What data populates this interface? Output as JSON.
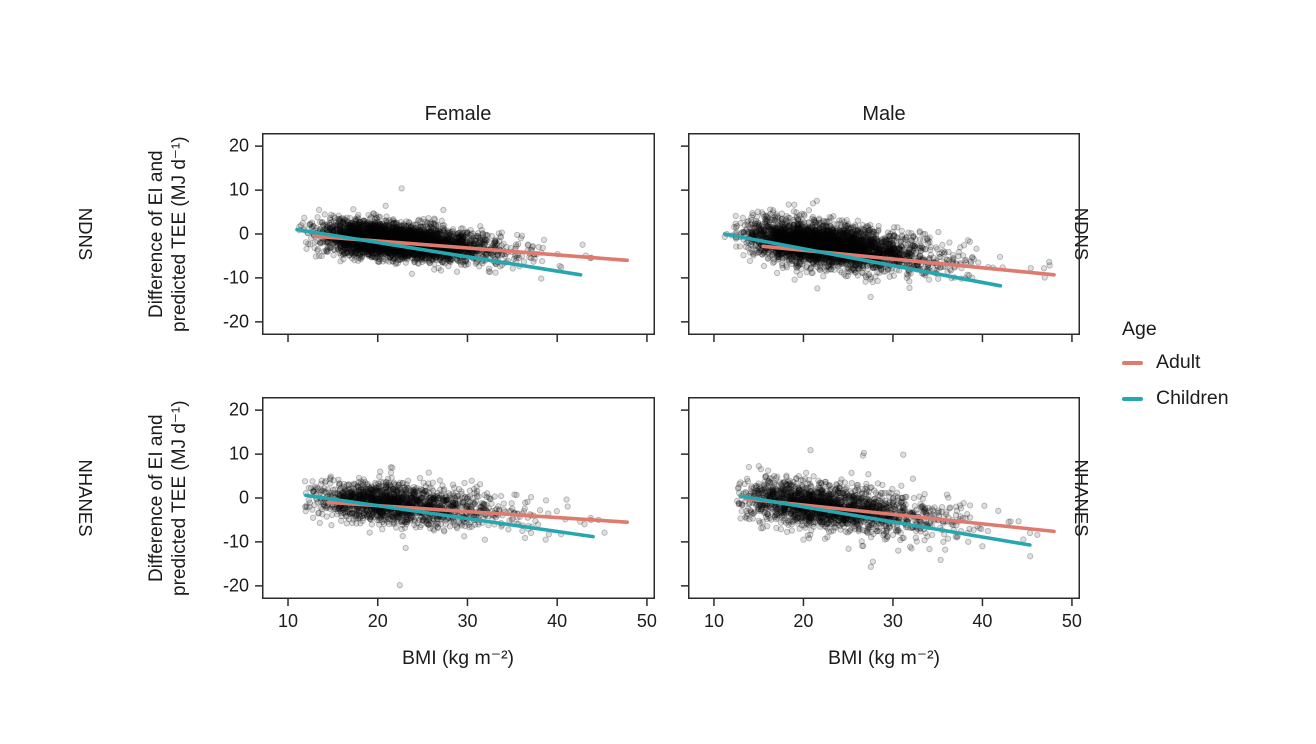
{
  "figure": {
    "column_titles": [
      "Female",
      "Male"
    ],
    "row_labels": [
      "NDNS",
      "NHANES"
    ],
    "y_axis_label_line1": "Difference of EI and",
    "y_axis_label_line2": "predicted TEE (MJ d⁻¹)",
    "x_axis_label": "BMI (kg m⁻²)"
  },
  "legend": {
    "title": "Age",
    "items": [
      {
        "label": "Adult",
        "color": "#DF7A6E"
      },
      {
        "label": "Children",
        "color": "#26A7AF"
      }
    ]
  },
  "chart_data": {
    "type": "scatter",
    "title": "",
    "facet_rows": [
      "NDNS",
      "NHANES"
    ],
    "facet_cols": [
      "Female",
      "Male"
    ],
    "xlabel": "BMI (kg m⁻²)",
    "ylabel": "Difference of EI and predicted TEE (MJ d⁻¹)",
    "xlim": [
      7.1,
      50.9
    ],
    "ylim": [
      -23,
      23
    ],
    "x_ticks": [
      10,
      20,
      30,
      40,
      50
    ],
    "y_ticks": [
      20,
      10,
      0,
      -10,
      -20
    ],
    "grid": "off",
    "legend_position": "right",
    "point_style": {
      "shape": "open-circle",
      "radius": 2.7,
      "fill": "rgba(0,0,0,0.13)",
      "stroke": "rgba(0,0,0,0.25)"
    },
    "series_colors": {
      "Adult": "#DF7A6E",
      "Children": "#26A7AF"
    },
    "panels": [
      {
        "row": "NDNS",
        "col": "Female",
        "trend_lines": [
          {
            "name": "Adult",
            "x": [
              13.0,
              47.8
            ],
            "y": [
              -0.5,
              -6.0
            ]
          },
          {
            "name": "Children",
            "x": [
              11.0,
              42.6
            ],
            "y": [
              1.0,
              -9.3
            ]
          }
        ],
        "cloud": {
          "n": 4300,
          "bmi_log_mean": 3.085,
          "bmi_log_sd": 0.205,
          "bmi_min": 11.2,
          "bmi_max": 48.0,
          "y_intercept": 2.6,
          "y_slope": -0.19,
          "y_sd": 1.95,
          "tail_prob": 0.006,
          "tail_mult": 2.6,
          "seed": 11
        }
      },
      {
        "row": "NDNS",
        "col": "Male",
        "trend_lines": [
          {
            "name": "Adult",
            "x": [
              15.5,
              48.0
            ],
            "y": [
              -2.8,
              -9.3
            ]
          },
          {
            "name": "Children",
            "x": [
              11.2,
              42.0
            ],
            "y": [
              0.0,
              -11.8
            ]
          }
        ],
        "cloud": {
          "n": 4000,
          "bmi_log_mean": 3.11,
          "bmi_log_sd": 0.215,
          "bmi_min": 11.2,
          "bmi_max": 48.5,
          "y_intercept": 3.1,
          "y_slope": -0.25,
          "y_sd": 2.25,
          "tail_prob": 0.007,
          "tail_mult": 2.6,
          "seed": 22
        }
      },
      {
        "row": "NHANES",
        "col": "Female",
        "trend_lines": [
          {
            "name": "Adult",
            "x": [
              14.5,
              47.8
            ],
            "y": [
              -1.0,
              -5.5
            ]
          },
          {
            "name": "Children",
            "x": [
              12.0,
              44.0
            ],
            "y": [
              0.6,
              -8.8
            ]
          }
        ],
        "cloud": {
          "n": 1750,
          "bmi_log_mean": 3.1,
          "bmi_log_sd": 0.235,
          "bmi_min": 11.8,
          "bmi_max": 48.5,
          "y_intercept": 2.3,
          "y_slope": -0.165,
          "y_sd": 2.2,
          "tail_prob": 0.015,
          "tail_mult": 2.6,
          "seed": 33
        }
      },
      {
        "row": "NHANES",
        "col": "Male",
        "trend_lines": [
          {
            "name": "Adult",
            "x": [
              13.5,
              48.0
            ],
            "y": [
              -0.2,
              -7.6
            ]
          },
          {
            "name": "Children",
            "x": [
              13.0,
              45.3
            ],
            "y": [
              0.4,
              -10.7
            ]
          }
        ],
        "cloud": {
          "n": 2100,
          "bmi_log_mean": 3.12,
          "bmi_log_sd": 0.235,
          "bmi_min": 12.2,
          "bmi_max": 48.5,
          "y_intercept": 2.9,
          "y_slope": -0.215,
          "y_sd": 2.5,
          "tail_prob": 0.015,
          "tail_mult": 2.7,
          "seed": 44
        }
      }
    ]
  }
}
